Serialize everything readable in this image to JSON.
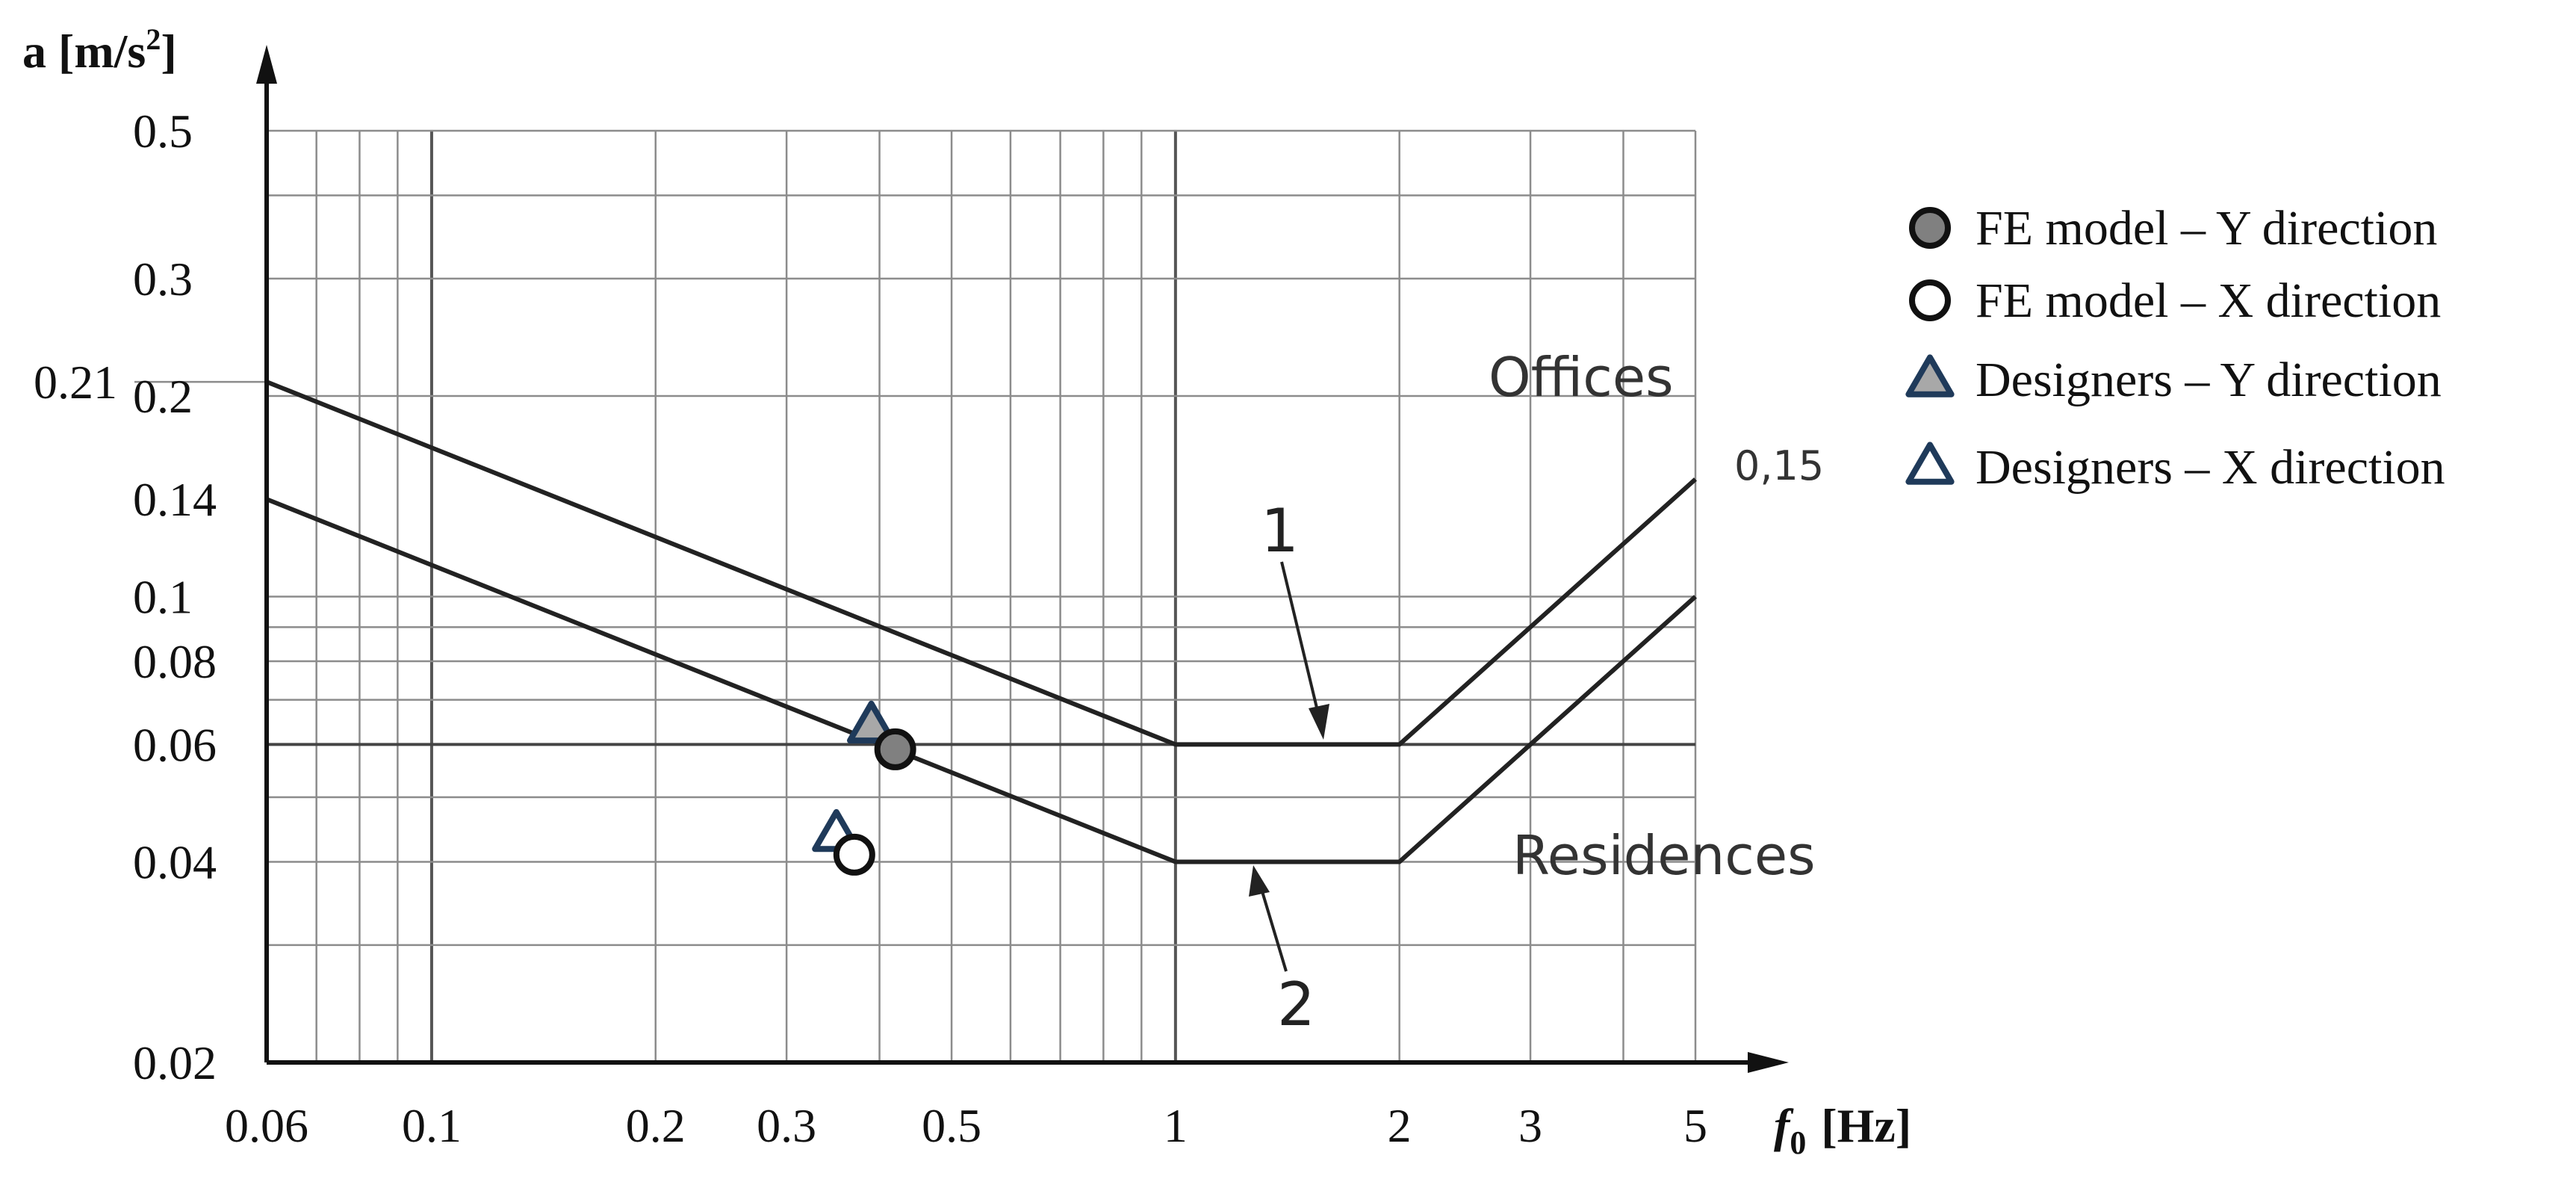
{
  "chart_data": {
    "type": "line",
    "xlabel_symbol": "f",
    "xlabel_sub": "0",
    "xlabel_unit": "[Hz]",
    "ylabel_main": "a [m/s",
    "ylabel_sup": "2",
    "ylabel_close": "]",
    "x_scale": "log",
    "y_scale": "log",
    "xlim": [
      0.06,
      5
    ],
    "ylim": [
      0.02,
      0.5
    ],
    "grid": true,
    "legend_position": "right",
    "x_ticks": [
      {
        "value": 0.06,
        "label": "0.06"
      },
      {
        "value": 0.1,
        "label": "0.1"
      },
      {
        "value": 0.2,
        "label": "0.2"
      },
      {
        "value": 0.3,
        "label": "0.3"
      },
      {
        "value": 0.5,
        "label": "0.5"
      },
      {
        "value": 1,
        "label": "1"
      },
      {
        "value": 2,
        "label": "2"
      },
      {
        "value": 3,
        "label": "3"
      },
      {
        "value": 5,
        "label": "5"
      }
    ],
    "y_ticks": [
      {
        "value": 0.5,
        "label": "0.5"
      },
      {
        "value": 0.3,
        "label": "0.3"
      },
      {
        "value": 0.21,
        "label": "0.21"
      },
      {
        "value": 0.2,
        "label": "0.2"
      },
      {
        "value": 0.14,
        "label": "0.14"
      },
      {
        "value": 0.1,
        "label": "0.1"
      },
      {
        "value": 0.08,
        "label": "0.08"
      },
      {
        "value": 0.06,
        "label": "0.06"
      },
      {
        "value": 0.04,
        "label": "0.04"
      },
      {
        "value": 0.02,
        "label": "0.02"
      }
    ],
    "grid_x": [
      0.06,
      0.07,
      0.08,
      0.09,
      0.1,
      0.2,
      0.3,
      0.4,
      0.5,
      0.6,
      0.7,
      0.8,
      0.9,
      1,
      2,
      3,
      4,
      5
    ],
    "grid_y": [
      0.02,
      0.03,
      0.04,
      0.05,
      0.06,
      0.07,
      0.08,
      0.09,
      0.1,
      0.2,
      0.3,
      0.4,
      0.5
    ],
    "curves": [
      {
        "id": "offices",
        "region_label": "Offices",
        "number_label": "1",
        "points": [
          [
            0.06,
            0.21
          ],
          [
            1,
            0.06
          ],
          [
            2,
            0.06
          ],
          [
            5,
            0.15
          ]
        ]
      },
      {
        "id": "residences",
        "region_label": "Residences",
        "number_label": "2",
        "points": [
          [
            0.06,
            0.14
          ],
          [
            1,
            0.04
          ],
          [
            2,
            0.04
          ],
          [
            5,
            0.1
          ]
        ]
      }
    ],
    "end_annotation": {
      "text": "0,15"
    },
    "markers": [
      {
        "name": "FE model – Y direction",
        "shape": "circle",
        "fill": "#808080",
        "stroke": "#111111",
        "x": 0.42,
        "y": 0.059
      },
      {
        "name": "FE model – X direction",
        "shape": "circle",
        "fill": "#ffffff",
        "stroke": "#111111",
        "x": 0.37,
        "y": 0.041
      },
      {
        "name": "Designers – Y direction",
        "shape": "triangle",
        "fill": "#a8a8a8",
        "stroke": "#1f3a5a",
        "x": 0.39,
        "y": 0.064
      },
      {
        "name": "Designers – X direction",
        "shape": "triangle",
        "fill": "#ffffff",
        "stroke": "#1f3a5a",
        "x": 0.35,
        "y": 0.044
      }
    ]
  }
}
